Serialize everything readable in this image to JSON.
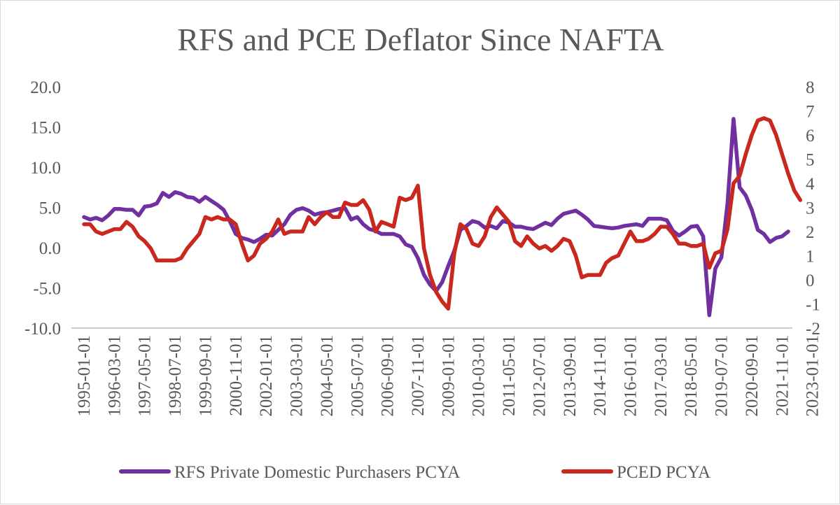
{
  "chart_data": {
    "type": "line",
    "title": "RFS and PCE Deflator Since NAFTA",
    "xlabel": "",
    "ylabel": "",
    "y2label": "",
    "x_tick_labels": [
      "1995-01-01",
      "1996-03-01",
      "1997-05-01",
      "1998-07-01",
      "1999-09-01",
      "2000-11-01",
      "2002-01-01",
      "2003-03-01",
      "2004-05-01",
      "2005-07-01",
      "2006-09-01",
      "2007-11-01",
      "2009-01-01",
      "2010-03-01",
      "2011-05-01",
      "2012-07-01",
      "2013-09-01",
      "2014-11-01",
      "2016-01-01",
      "2017-03-01",
      "2018-05-01",
      "2019-07-01",
      "2020-09-01",
      "2021-11-01",
      "2023-01-01"
    ],
    "left_axis": {
      "ylim": [
        -10,
        20
      ],
      "ticks": [
        -10,
        -5,
        0,
        5,
        10,
        15,
        20
      ],
      "tick_labels": [
        "-10.0",
        "-5.0",
        "0.0",
        "5.0",
        "10.0",
        "15.0",
        "20.0"
      ]
    },
    "right_axis": {
      "ylim": [
        -2,
        8
      ],
      "ticks": [
        -2,
        -1,
        0,
        1,
        2,
        3,
        4,
        5,
        6,
        7,
        8
      ],
      "tick_labels": [
        "-2",
        "-1",
        "0",
        "1",
        "2",
        "3",
        "4",
        "5",
        "6",
        "7",
        "8"
      ]
    },
    "grid": false,
    "legend_position": "bottom",
    "x_start": "1995-01-01",
    "x_frequency": "quarterly",
    "series": [
      {
        "name": "RFS Private Domestic Purchasers PCYA",
        "axis": "left",
        "color": "#7030a0",
        "values": [
          3.8,
          3.5,
          3.7,
          3.4,
          4.0,
          4.8,
          4.8,
          4.7,
          4.7,
          4.0,
          5.1,
          5.2,
          5.5,
          6.8,
          6.3,
          6.9,
          6.7,
          6.3,
          6.2,
          5.7,
          6.3,
          5.8,
          5.3,
          4.7,
          3.3,
          1.7,
          1.2,
          1.0,
          0.7,
          1.1,
          1.6,
          1.5,
          2.2,
          2.9,
          4.1,
          4.7,
          4.9,
          4.6,
          4.1,
          4.3,
          4.4,
          4.6,
          4.8,
          4.9,
          3.5,
          3.8,
          2.9,
          2.3,
          2.1,
          1.7,
          1.7,
          1.7,
          1.4,
          0.4,
          0.1,
          -1.3,
          -3.4,
          -4.6,
          -5.4,
          -4.3,
          -2.3,
          -0.4,
          2.2,
          2.7,
          3.3,
          3.1,
          2.5,
          2.7,
          2.4,
          3.3,
          3.1,
          2.6,
          2.6,
          2.4,
          2.3,
          2.7,
          3.1,
          2.8,
          3.6,
          4.2,
          4.4,
          4.6,
          4.1,
          3.5,
          2.7,
          2.6,
          2.5,
          2.4,
          2.5,
          2.7,
          2.8,
          2.9,
          2.7,
          3.6,
          3.6,
          3.6,
          3.4,
          2.1,
          1.5,
          2.0,
          2.6,
          2.7,
          1.4,
          -8.4,
          -2.6,
          -1.2,
          5.5,
          16.0,
          7.5,
          6.5,
          4.7,
          2.2,
          1.7,
          0.7,
          1.2,
          1.4,
          2.0
        ]
      },
      {
        "name": "PCED PCYA",
        "axis": "right",
        "color": "#c8281e",
        "values": [
          2.3,
          2.3,
          2.0,
          1.9,
          2.0,
          2.1,
          2.1,
          2.4,
          2.2,
          1.8,
          1.6,
          1.3,
          0.8,
          0.8,
          0.8,
          0.8,
          0.9,
          1.3,
          1.6,
          1.9,
          2.6,
          2.5,
          2.6,
          2.5,
          2.5,
          2.3,
          1.5,
          0.8,
          1.0,
          1.5,
          1.7,
          2.0,
          2.5,
          1.9,
          2.0,
          2.0,
          2.0,
          2.6,
          2.3,
          2.6,
          2.8,
          2.6,
          2.6,
          3.2,
          3.1,
          3.1,
          3.3,
          2.9,
          2.0,
          2.4,
          2.3,
          2.2,
          3.4,
          3.3,
          3.4,
          3.9,
          1.3,
          0.2,
          -0.5,
          -0.9,
          -1.2,
          1.1,
          2.3,
          2.1,
          1.5,
          1.4,
          1.8,
          2.6,
          3.0,
          2.7,
          2.4,
          1.6,
          1.4,
          1.8,
          1.5,
          1.3,
          1.4,
          1.2,
          1.4,
          1.7,
          1.6,
          1.0,
          0.1,
          0.2,
          0.2,
          0.2,
          0.7,
          0.9,
          1.0,
          1.5,
          2.0,
          1.6,
          1.6,
          1.7,
          1.9,
          2.2,
          2.2,
          1.9,
          1.5,
          1.5,
          1.4,
          1.4,
          1.5,
          0.5,
          1.1,
          1.2,
          2.1,
          4.0,
          4.3,
          5.2,
          6.0,
          6.6,
          6.7,
          6.6,
          6.0,
          5.2,
          4.4,
          3.7,
          3.3
        ]
      }
    ]
  }
}
